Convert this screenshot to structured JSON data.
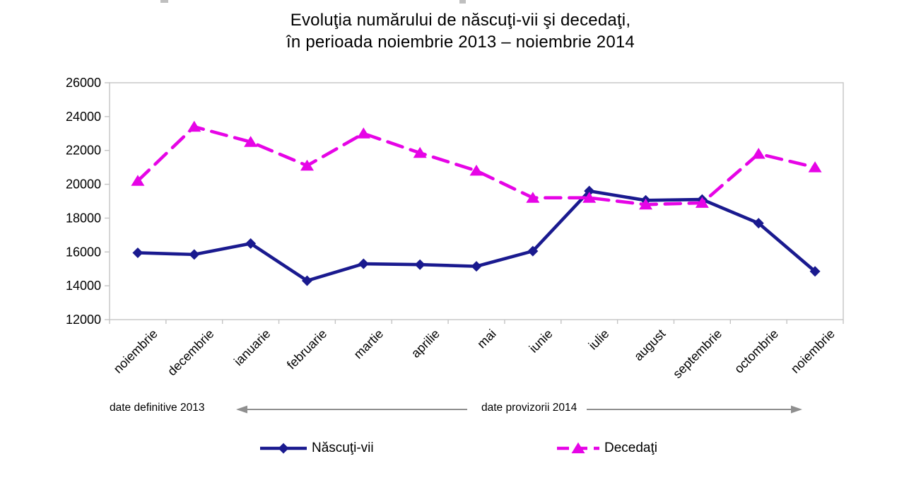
{
  "title": {
    "line1": "Evoluţia numărului de născuţi-vii şi decedaţi,",
    "line2": "în perioada noiembrie 2013 – noiembrie 2014"
  },
  "chart_data": {
    "type": "line",
    "categories": [
      "noiembrie",
      "decembrie",
      "ianuarie",
      "februarie",
      "martie",
      "aprilie",
      "mai",
      "iunie",
      "iulie",
      "august",
      "septembrie",
      "octombrie",
      "noiembrie"
    ],
    "series": [
      {
        "name": "Născuţi-vii",
        "color": "#1a1a8f",
        "marker": "diamond",
        "line_style": "solid",
        "values": [
          15950,
          15850,
          16500,
          14300,
          15300,
          15250,
          15150,
          16050,
          19600,
          19050,
          19100,
          17700,
          14850
        ]
      },
      {
        "name": "Decedaţi",
        "color": "#e604e6",
        "marker": "triangle",
        "line_style": "dashed",
        "values": [
          20200,
          23400,
          22500,
          21100,
          23000,
          21850,
          20800,
          19200,
          19200,
          18800,
          18900,
          21800,
          21000
        ]
      }
    ],
    "ylim": [
      12000,
      26000
    ],
    "ytick_step": 2000,
    "grid": false,
    "legend_position": "bottom",
    "xlabel": "",
    "ylabel": ""
  },
  "annotations": {
    "definitive": "date definitive 2013",
    "provisional": "date provizorii 2014"
  },
  "legend": {
    "series1": "Născuţi-vii",
    "series2": "Decedaţi"
  },
  "colors": {
    "births": "#1a1a8f",
    "deaths": "#e604e6",
    "axis": "#c4c4c4",
    "arrow": "#8f8f8f",
    "text": "#000000"
  }
}
